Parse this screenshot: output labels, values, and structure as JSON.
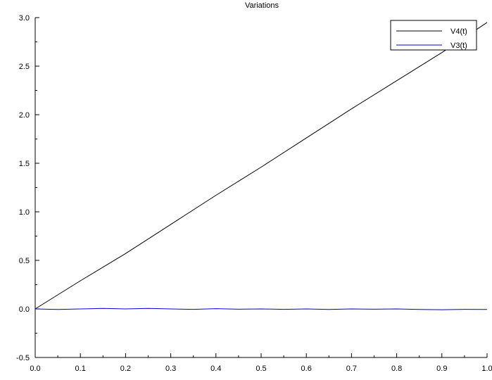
{
  "chart_data": {
    "type": "line",
    "title": "Variations",
    "xlabel": "",
    "ylabel": "",
    "xlim": [
      0.0,
      1.0
    ],
    "ylim": [
      -0.5,
      3.0
    ],
    "x_ticks": [
      "0.0",
      "0.1",
      "0.2",
      "0.3",
      "0.4",
      "0.5",
      "0.6",
      "0.7",
      "0.8",
      "0.9",
      "1.0"
    ],
    "y_ticks": [
      "-0.5",
      "0.0",
      "0.5",
      "1.0",
      "1.5",
      "2.0",
      "2.5",
      "3.0"
    ],
    "grid": false,
    "legend_position": "top-right",
    "series": [
      {
        "name": "V4(t)",
        "color": "#000000",
        "x": [
          0.0,
          0.1,
          0.2,
          0.3,
          0.4,
          0.5,
          0.6,
          0.7,
          0.8,
          0.9,
          1.0
        ],
        "y": [
          0.0,
          0.29,
          0.57,
          0.87,
          1.17,
          1.46,
          1.76,
          2.06,
          2.35,
          2.64,
          2.95
        ]
      },
      {
        "name": "V3(t)",
        "color": "#0000cc",
        "x": [
          0.0,
          0.05,
          0.1,
          0.15,
          0.2,
          0.25,
          0.3,
          0.35,
          0.4,
          0.45,
          0.5,
          0.55,
          0.6,
          0.65,
          0.7,
          0.75,
          0.8,
          0.85,
          0.9,
          0.95,
          1.0
        ],
        "y": [
          0.0,
          -0.005,
          0.0,
          0.005,
          0.0,
          0.006,
          0.0,
          -0.004,
          0.003,
          -0.003,
          0.0,
          -0.004,
          0.0,
          -0.006,
          0.0,
          -0.003,
          0.0,
          -0.006,
          -0.008,
          -0.004,
          -0.006
        ]
      }
    ]
  }
}
